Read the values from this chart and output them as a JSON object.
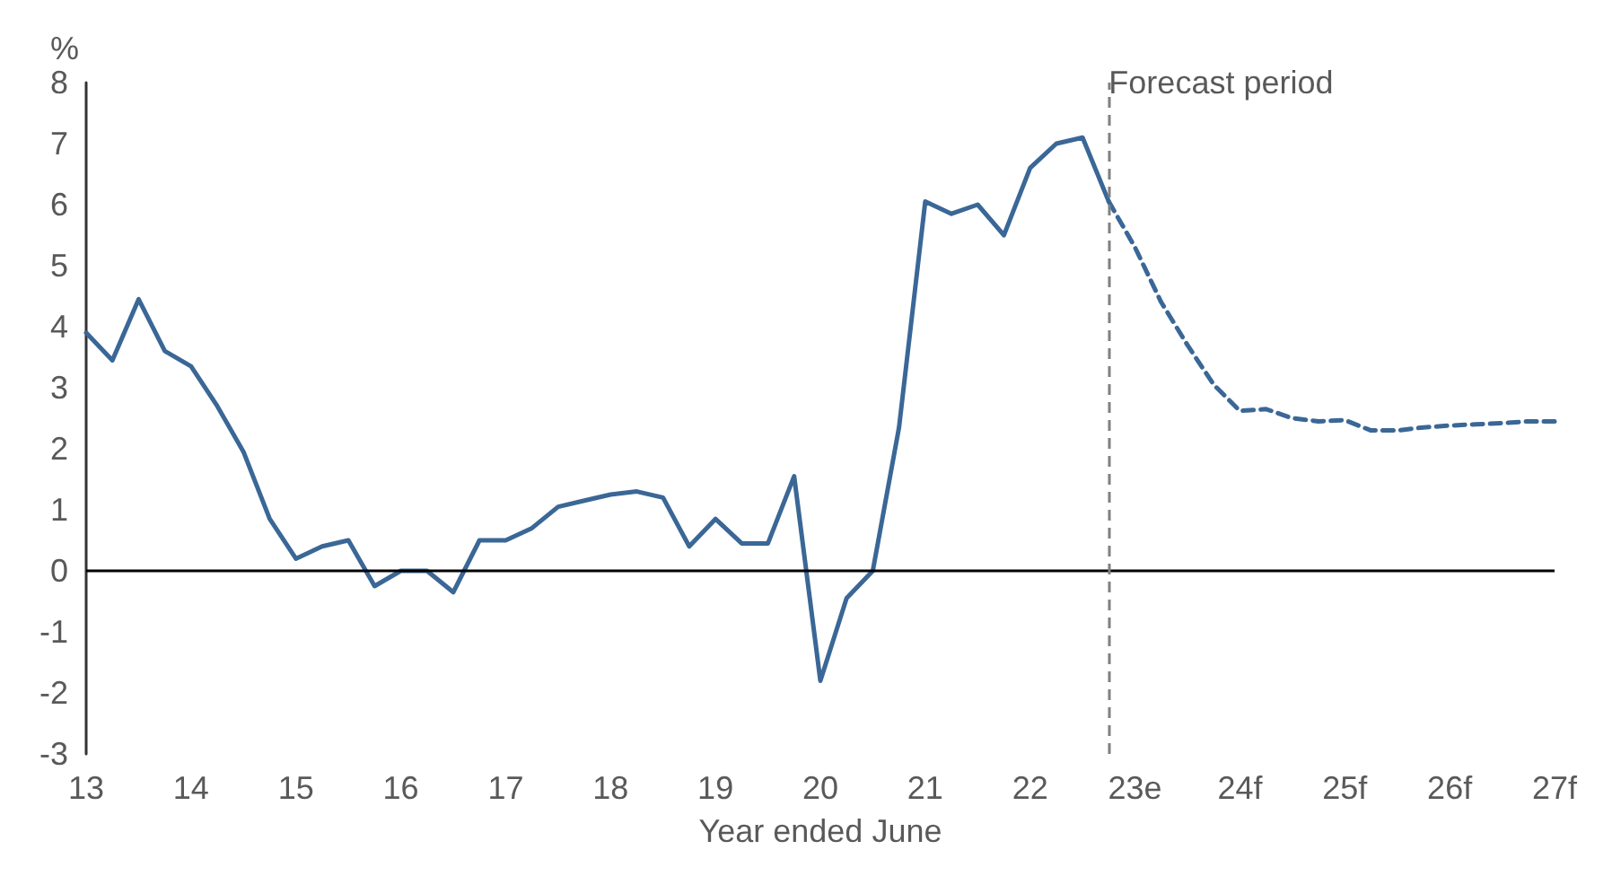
{
  "chart_data": {
    "type": "line",
    "xlabel": "Year ended June",
    "ylabel": "%",
    "xlim": [
      13,
      27
    ],
    "ylim": [
      -3,
      8
    ],
    "xticks": [
      13,
      14,
      15,
      16,
      17,
      18,
      19,
      20,
      21,
      22,
      {
        "value": 23,
        "label": "23e"
      },
      {
        "value": 24,
        "label": "24f"
      },
      {
        "value": 25,
        "label": "25f"
      },
      {
        "value": 26,
        "label": "26f"
      },
      {
        "value": 27,
        "label": "27f"
      }
    ],
    "yticks": [
      -3,
      -2,
      -1,
      0,
      1,
      2,
      3,
      4,
      5,
      6,
      7,
      8
    ],
    "grid": false,
    "marker": "none",
    "series": [
      {
        "color": "#3a6796",
        "line_style": "solid",
        "x": [
          13,
          13.25,
          13.5,
          13.75,
          14,
          14.25,
          14.5,
          14.75,
          15,
          15.25,
          15.5,
          15.75,
          16,
          16.25,
          16.5,
          16.75,
          17,
          17.25,
          17.5,
          17.75,
          18,
          18.25,
          18.5,
          18.75,
          19,
          19.25,
          19.5,
          19.75,
          20,
          20.25,
          20.5,
          20.75,
          21,
          21.25,
          21.5,
          21.75,
          22,
          22.25,
          22.5,
          22.75
        ],
        "values": [
          3.9,
          3.45,
          4.45,
          3.6,
          3.35,
          2.7,
          1.95,
          0.85,
          0.2,
          0.4,
          0.5,
          -0.25,
          0,
          0,
          -0.35,
          0.5,
          0.5,
          0.7,
          1.05,
          1.15,
          1.25,
          1.3,
          1.2,
          0.4,
          0.85,
          0.45,
          0.45,
          1.55,
          -1.8,
          -0.45,
          0,
          2.35,
          6.05,
          5.85,
          6,
          5.5,
          6.6,
          7,
          7.1,
          6.05
        ]
      },
      {
        "color": "#3a6796",
        "line_style": "dashed",
        "x": [
          22.75,
          23,
          23.25,
          23.5,
          23.75,
          24,
          24.25,
          24.5,
          24.75,
          25,
          25.25,
          25.5,
          25.75,
          26,
          26.25,
          26.5,
          26.75,
          27
        ],
        "values": [
          6.05,
          5.3,
          4.4,
          3.7,
          3.05,
          2.62,
          2.65,
          2.5,
          2.45,
          2.47,
          2.3,
          2.3,
          2.35,
          2.38,
          2.4,
          2.42,
          2.45,
          2.45
        ]
      }
    ],
    "ref_lines": [
      {
        "axis": "y",
        "value": 0,
        "label": null,
        "color": "#000000",
        "line_style": "solid"
      },
      {
        "axis": "x",
        "value": 22.75,
        "label": "Forecast period",
        "color": "#808080",
        "line_style": "dashed"
      }
    ]
  }
}
